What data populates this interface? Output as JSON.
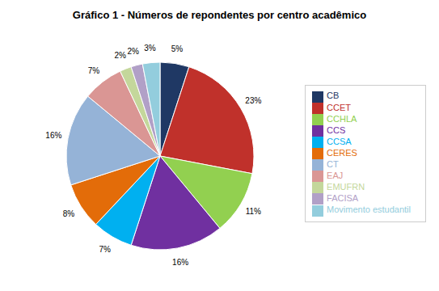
{
  "chart_data": {
    "type": "pie",
    "title": "Gráfico 1 - Números de repondentes por centro acadêmico",
    "categories": [
      "CB",
      "CCET",
      "CCHLA",
      "CCS",
      "CCSA",
      "CERES",
      "CT",
      "EAJ",
      "EMUFRN",
      "FACISA",
      "Movimento estudantil"
    ],
    "values": [
      5,
      23,
      11,
      16,
      7,
      8,
      16,
      7,
      2,
      2,
      3
    ],
    "value_labels": [
      "5%",
      "23%",
      "11%",
      "16%",
      "7%",
      "8%",
      "16%",
      "7%",
      "2%",
      "2%",
      "3%"
    ],
    "colors": [
      "#1F3864",
      "#C0312B",
      "#92D050",
      "#7030A0",
      "#00B0F0",
      "#E36C09",
      "#95B3D7",
      "#DA9694",
      "#C4D79B",
      "#B1A0C7",
      "#93CDDD"
    ],
    "data_labels": true,
    "legend": "right"
  }
}
